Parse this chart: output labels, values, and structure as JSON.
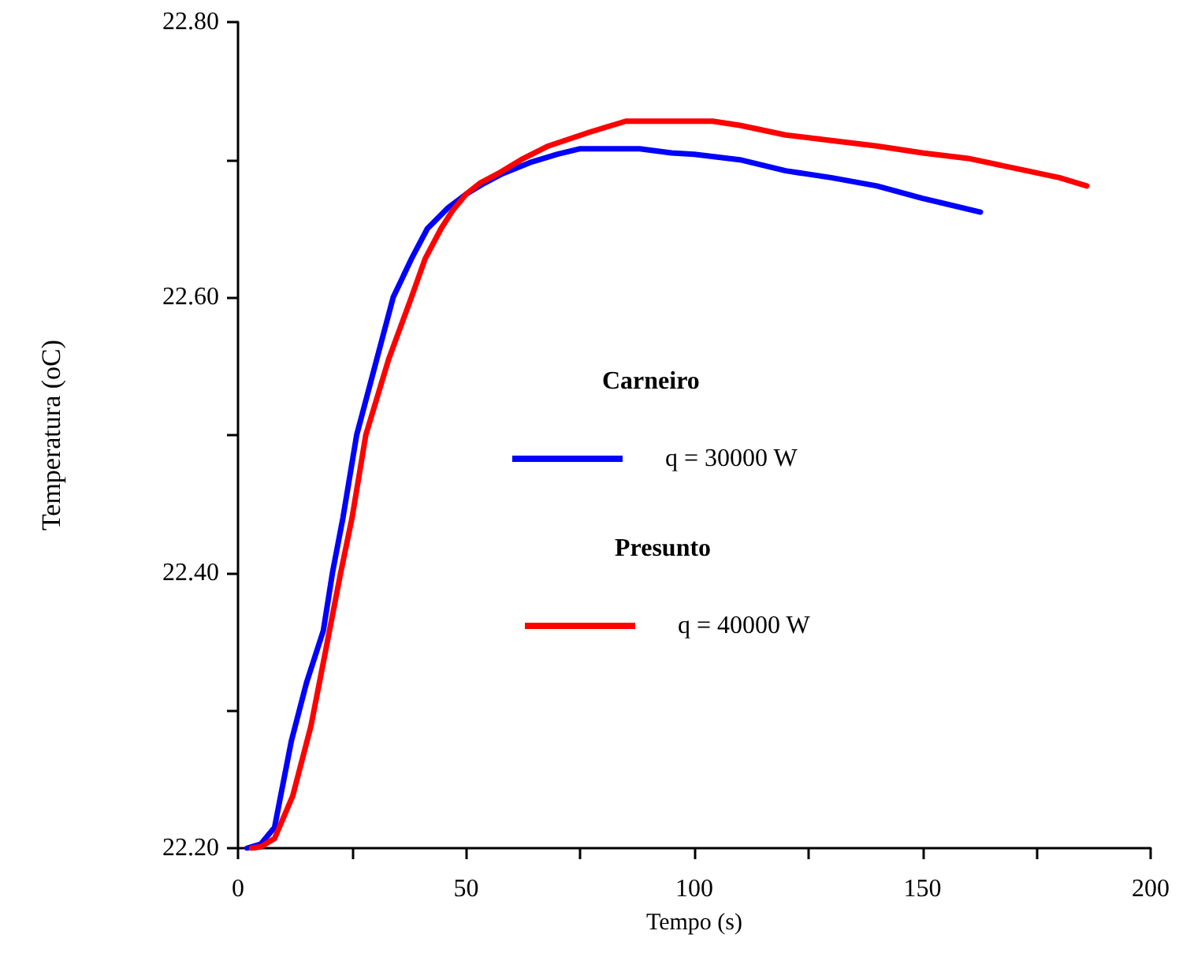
{
  "chart_data": {
    "type": "line",
    "xlabel": "Tempo (s)",
    "ylabel": "Temperatura (oC)",
    "xlim": [
      0,
      200
    ],
    "xticks": [
      0,
      {
        "value": 25,
        "label": null
      },
      50,
      {
        "value": 75,
        "label": null
      },
      100,
      {
        "value": 125,
        "label": null
      },
      150,
      {
        "value": 175,
        "label": null
      },
      200
    ],
    "ylim": [
      22.2,
      22.8
    ],
    "yticks": [
      {
        "value": 22.2,
        "label": "22.20"
      },
      {
        "value": 22.3,
        "label": null
      },
      {
        "value": 22.4,
        "label": "22.40"
      },
      {
        "value": 22.5,
        "label": null
      },
      {
        "value": 22.6,
        "label": "22.60"
      },
      {
        "value": 22.7,
        "label": null
      },
      {
        "value": 22.8,
        "label": "22.80"
      }
    ],
    "grid": false,
    "legend": "center",
    "marker": "none",
    "line_style": "solid",
    "annotations": [
      "Carneiro",
      "Presunto"
    ],
    "series": [
      {
        "name": "q = 30000 W",
        "color": "#0000ff",
        "x": [
          2,
          5,
          8,
          11.7,
          15,
          18.7,
          20.7,
          23,
          26,
          30,
          34,
          38,
          41.5,
          46,
          50,
          54,
          58,
          64,
          70,
          75,
          88,
          95,
          100,
          110,
          120,
          130,
          140,
          150,
          162.7
        ],
        "values": [
          22.2,
          22.203,
          22.215,
          22.278,
          22.32,
          22.358,
          22.4,
          22.44,
          22.5,
          22.55,
          22.6,
          22.628,
          22.65,
          22.665,
          22.675,
          22.683,
          22.69,
          22.698,
          22.704,
          22.708,
          22.708,
          22.705,
          22.704,
          22.7,
          22.692,
          22.687,
          22.681,
          22.672,
          22.662
        ]
      },
      {
        "name": "q = 40000 W",
        "color": "#ff0000",
        "x": [
          3,
          5,
          8,
          12,
          16,
          19,
          22.5,
          25,
          28,
          33,
          38,
          41,
          44.5,
          47,
          50,
          53,
          57,
          62,
          68,
          77,
          85,
          104,
          110,
          120,
          130,
          140,
          150,
          160,
          170,
          180,
          186
        ],
        "values": [
          22.2,
          22.201,
          22.207,
          22.238,
          22.289,
          22.34,
          22.4,
          22.44,
          22.5,
          22.555,
          22.6,
          22.628,
          22.65,
          22.663,
          22.675,
          22.683,
          22.69,
          22.7,
          22.71,
          22.72,
          22.728,
          22.728,
          22.725,
          22.718,
          22.714,
          22.71,
          22.705,
          22.701,
          22.694,
          22.687,
          22.681
        ]
      }
    ]
  }
}
